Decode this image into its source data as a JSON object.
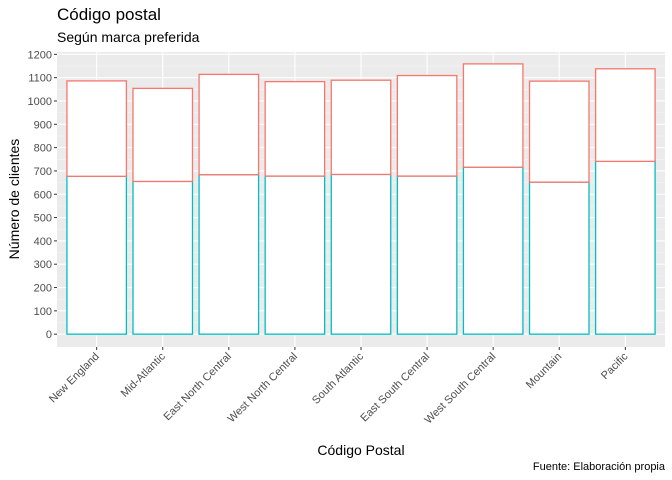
{
  "chart_data": {
    "type": "bar",
    "title": "Código postal",
    "subtitle": "Según marca preferida",
    "xlabel": "Código Postal",
    "ylabel": "Número de clientes",
    "caption": "Fuente: Elaboración propia",
    "categories": [
      "New England",
      "Mid-Atlantic",
      "East North Central",
      "West North Central",
      "South Atlantic",
      "East South Central",
      "West South Central",
      "Mountain",
      "Pacific"
    ],
    "series": [
      {
        "color": "#00bfc4",
        "values": [
          677,
          655,
          684,
          678,
          685,
          678,
          716,
          652,
          741
        ]
      },
      {
        "color": "#f8766d",
        "values": [
          409,
          399,
          430,
          405,
          404,
          431,
          443,
          433,
          397
        ]
      }
    ],
    "stacked": true,
    "ylim": [
      -55,
      1210
    ],
    "yticks": [
      0,
      100,
      200,
      300,
      400,
      500,
      600,
      700,
      800,
      900,
      1000,
      1100,
      1200
    ],
    "grid": true,
    "legend": "none"
  }
}
